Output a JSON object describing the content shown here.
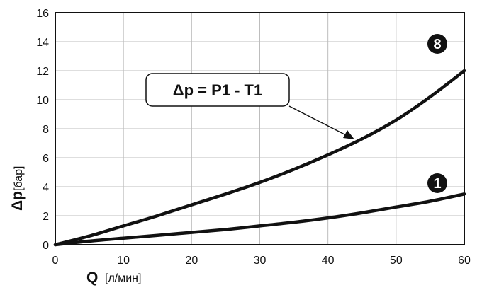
{
  "chart_data": {
    "type": "line",
    "xlabel": "Q",
    "xlabel_unit": "[л/мин]",
    "ylabel": "Δp",
    "ylabel_unit": "[бар]",
    "xlim": [
      0,
      60
    ],
    "ylim": [
      0,
      16
    ],
    "x_ticks": [
      "0",
      "10",
      "20",
      "30",
      "40",
      "50",
      "60"
    ],
    "y_ticks": [
      "0",
      "2",
      "4",
      "6",
      "8",
      "10",
      "12",
      "14",
      "16"
    ],
    "grid": true,
    "annotation": "Δp = P1 - T1",
    "series": [
      {
        "name": "8",
        "x": [
          0,
          5,
          10,
          15,
          20,
          25,
          30,
          35,
          40,
          45,
          50,
          55,
          60
        ],
        "values": [
          0,
          0.6,
          1.3,
          2.0,
          2.75,
          3.5,
          4.3,
          5.2,
          6.2,
          7.3,
          8.6,
          10.2,
          12.0
        ]
      },
      {
        "name": "1",
        "x": [
          0,
          5,
          10,
          15,
          20,
          25,
          30,
          35,
          40,
          45,
          50,
          55,
          60
        ],
        "values": [
          0,
          0.25,
          0.45,
          0.65,
          0.85,
          1.05,
          1.3,
          1.55,
          1.85,
          2.2,
          2.6,
          3.0,
          3.5
        ]
      }
    ]
  }
}
